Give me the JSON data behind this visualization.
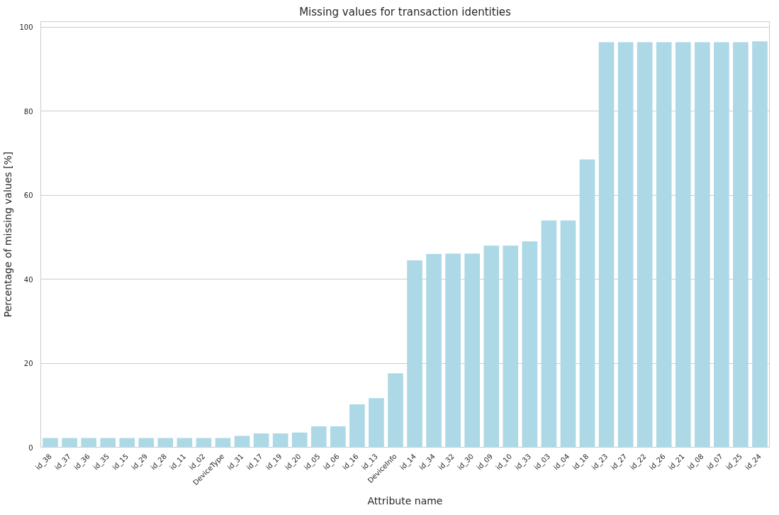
{
  "chart_data": {
    "type": "bar",
    "title": "Missing values for transaction identities",
    "xlabel": "Attribute name",
    "ylabel": "Percentage of missing values [%]",
    "categories": [
      "id_38",
      "id_37",
      "id_36",
      "id_35",
      "id_15",
      "id_29",
      "id_28",
      "id_11",
      "id_02",
      "DeviceType",
      "id_31",
      "id_17",
      "id_19",
      "id_20",
      "id_05",
      "id_06",
      "id_16",
      "id_13",
      "DeviceInfo",
      "id_14",
      "id_34",
      "id_32",
      "id_30",
      "id_09",
      "id_10",
      "id_33",
      "id_03",
      "id_04",
      "id_18",
      "id_23",
      "id_27",
      "id_22",
      "id_26",
      "id_21",
      "id_08",
      "id_07",
      "id_25",
      "id_24"
    ],
    "values": [
      2.2,
      2.2,
      2.2,
      2.2,
      2.2,
      2.2,
      2.2,
      2.2,
      2.2,
      2.2,
      2.7,
      3.3,
      3.3,
      3.5,
      5.0,
      5.0,
      10.2,
      11.7,
      17.6,
      44.5,
      46.0,
      46.1,
      46.1,
      48.0,
      48.0,
      49.0,
      54.0,
      54.0,
      68.5,
      96.4,
      96.4,
      96.4,
      96.4,
      96.4,
      96.4,
      96.4,
      96.4,
      96.6
    ],
    "color": "#add8e6",
    "ylim": [
      0,
      101.3
    ],
    "yticks": [
      0,
      20,
      40,
      60,
      80,
      100
    ],
    "grid": "y"
  }
}
